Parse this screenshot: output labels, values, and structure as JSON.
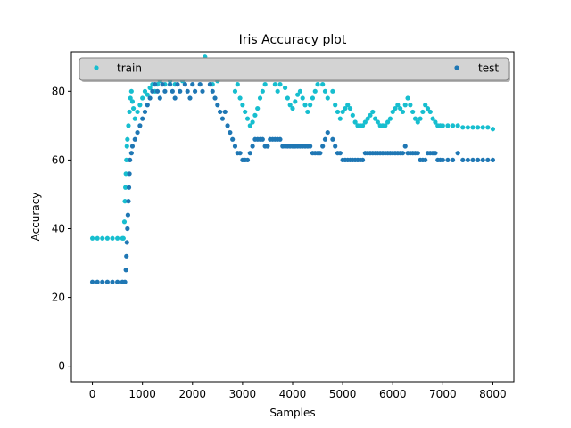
{
  "chart_data": {
    "type": "scatter",
    "title": "Iris Accuracy plot",
    "xlabel": "Samples",
    "ylabel": "Accuracy",
    "xlim": [
      -420,
      8420
    ],
    "ylim": [
      -4.5,
      91.5
    ],
    "xticks": [
      0,
      1000,
      2000,
      3000,
      4000,
      5000,
      6000,
      7000,
      8000
    ],
    "yticks": [
      0,
      20,
      40,
      60,
      80
    ],
    "grid": false,
    "legend_placement": "top",
    "series": [
      {
        "name": "train",
        "color": "#17becf",
        "points": [
          [
            0,
            37.2
          ],
          [
            100,
            37.2
          ],
          [
            200,
            37.2
          ],
          [
            300,
            37.2
          ],
          [
            400,
            37.2
          ],
          [
            500,
            37.2
          ],
          [
            600,
            37.2
          ],
          [
            620,
            37.2
          ],
          [
            640,
            42
          ],
          [
            650,
            48
          ],
          [
            660,
            52
          ],
          [
            670,
            56
          ],
          [
            680,
            60
          ],
          [
            690,
            64
          ],
          [
            700,
            66
          ],
          [
            720,
            70
          ],
          [
            740,
            74
          ],
          [
            760,
            78
          ],
          [
            780,
            80
          ],
          [
            800,
            77
          ],
          [
            820,
            75
          ],
          [
            850,
            72
          ],
          [
            900,
            74
          ],
          [
            950,
            76
          ],
          [
            1000,
            78
          ],
          [
            1050,
            80
          ],
          [
            1100,
            79
          ],
          [
            1150,
            81
          ],
          [
            1200,
            82
          ],
          [
            1250,
            80
          ],
          [
            1300,
            82
          ],
          [
            1350,
            83
          ],
          [
            1400,
            84
          ],
          [
            1450,
            82
          ],
          [
            1500,
            84
          ],
          [
            1550,
            83
          ],
          [
            1600,
            85
          ],
          [
            1650,
            82
          ],
          [
            1700,
            84
          ],
          [
            1750,
            86
          ],
          [
            1800,
            83
          ],
          [
            1850,
            84
          ],
          [
            1900,
            86
          ],
          [
            1950,
            84
          ],
          [
            2000,
            87
          ],
          [
            2050,
            85
          ],
          [
            2100,
            86
          ],
          [
            2150,
            84
          ],
          [
            2200,
            88
          ],
          [
            2250,
            90
          ],
          [
            2300,
            86
          ],
          [
            2350,
            84
          ],
          [
            2400,
            82
          ],
          [
            2450,
            84
          ],
          [
            2500,
            83
          ],
          [
            2550,
            84
          ],
          [
            2600,
            86
          ],
          [
            2650,
            84
          ],
          [
            2700,
            85
          ],
          [
            2750,
            86
          ],
          [
            2800,
            84
          ],
          [
            2850,
            80
          ],
          [
            2900,
            82
          ],
          [
            2950,
            78
          ],
          [
            3000,
            76
          ],
          [
            3050,
            74
          ],
          [
            3100,
            72
          ],
          [
            3150,
            70
          ],
          [
            3200,
            71
          ],
          [
            3250,
            73
          ],
          [
            3300,
            75
          ],
          [
            3350,
            78
          ],
          [
            3400,
            80
          ],
          [
            3450,
            82
          ],
          [
            3500,
            84
          ],
          [
            3550,
            85
          ],
          [
            3600,
            84
          ],
          [
            3650,
            82
          ],
          [
            3700,
            80
          ],
          [
            3750,
            82
          ],
          [
            3800,
            84
          ],
          [
            3850,
            81
          ],
          [
            3900,
            78
          ],
          [
            3950,
            76
          ],
          [
            4000,
            75
          ],
          [
            4050,
            77
          ],
          [
            4100,
            79
          ],
          [
            4150,
            80
          ],
          [
            4200,
            78
          ],
          [
            4250,
            76
          ],
          [
            4300,
            74
          ],
          [
            4350,
            76
          ],
          [
            4400,
            78
          ],
          [
            4450,
            80
          ],
          [
            4500,
            82
          ],
          [
            4550,
            84
          ],
          [
            4600,
            82
          ],
          [
            4650,
            80
          ],
          [
            4700,
            78
          ],
          [
            4750,
            89
          ],
          [
            4800,
            80
          ],
          [
            4850,
            76
          ],
          [
            4900,
            74
          ],
          [
            4950,
            72
          ],
          [
            5000,
            74
          ],
          [
            5050,
            75
          ],
          [
            5100,
            76
          ],
          [
            5150,
            75
          ],
          [
            5200,
            73
          ],
          [
            5250,
            71
          ],
          [
            5300,
            70
          ],
          [
            5350,
            70
          ],
          [
            5400,
            70
          ],
          [
            5450,
            71
          ],
          [
            5500,
            72
          ],
          [
            5550,
            73
          ],
          [
            5600,
            74
          ],
          [
            5650,
            72
          ],
          [
            5700,
            71
          ],
          [
            5750,
            70
          ],
          [
            5800,
            70
          ],
          [
            5850,
            70
          ],
          [
            5900,
            71
          ],
          [
            5950,
            72
          ],
          [
            6000,
            74
          ],
          [
            6050,
            75
          ],
          [
            6100,
            76
          ],
          [
            6150,
            75
          ],
          [
            6200,
            74
          ],
          [
            6250,
            76
          ],
          [
            6300,
            78
          ],
          [
            6350,
            76
          ],
          [
            6400,
            74
          ],
          [
            6450,
            72
          ],
          [
            6500,
            71
          ],
          [
            6550,
            72
          ],
          [
            6600,
            74
          ],
          [
            6650,
            76
          ],
          [
            6700,
            75
          ],
          [
            6750,
            74
          ],
          [
            6800,
            72
          ],
          [
            6850,
            71
          ],
          [
            6900,
            70
          ],
          [
            6950,
            70
          ],
          [
            7000,
            70
          ],
          [
            7100,
            70
          ],
          [
            7200,
            70
          ],
          [
            7300,
            70
          ],
          [
            7400,
            69.5
          ],
          [
            7500,
            69.5
          ],
          [
            7600,
            69.5
          ],
          [
            7700,
            69.5
          ],
          [
            7800,
            69.5
          ],
          [
            7900,
            69.5
          ],
          [
            8000,
            69
          ]
        ]
      },
      {
        "name": "test",
        "color": "#1f77b4",
        "points": [
          [
            0,
            24.5
          ],
          [
            100,
            24.5
          ],
          [
            200,
            24.5
          ],
          [
            300,
            24.5
          ],
          [
            400,
            24.5
          ],
          [
            500,
            24.5
          ],
          [
            600,
            24.5
          ],
          [
            650,
            24.5
          ],
          [
            670,
            28
          ],
          [
            680,
            32
          ],
          [
            690,
            36
          ],
          [
            700,
            40
          ],
          [
            710,
            44
          ],
          [
            720,
            48
          ],
          [
            730,
            52
          ],
          [
            740,
            56
          ],
          [
            750,
            60
          ],
          [
            780,
            62
          ],
          [
            800,
            64
          ],
          [
            850,
            66
          ],
          [
            900,
            68
          ],
          [
            950,
            70
          ],
          [
            1000,
            72
          ],
          [
            1050,
            74
          ],
          [
            1100,
            76
          ],
          [
            1150,
            78
          ],
          [
            1200,
            80
          ],
          [
            1250,
            82
          ],
          [
            1300,
            80
          ],
          [
            1350,
            78
          ],
          [
            1400,
            82
          ],
          [
            1450,
            80
          ],
          [
            1500,
            84
          ],
          [
            1550,
            82
          ],
          [
            1600,
            80
          ],
          [
            1650,
            78
          ],
          [
            1700,
            82
          ],
          [
            1750,
            80
          ],
          [
            1800,
            84
          ],
          [
            1850,
            82
          ],
          [
            1900,
            80
          ],
          [
            1950,
            78
          ],
          [
            2000,
            82
          ],
          [
            2050,
            80
          ],
          [
            2100,
            84
          ],
          [
            2150,
            82
          ],
          [
            2200,
            80
          ],
          [
            2250,
            84
          ],
          [
            2300,
            86
          ],
          [
            2350,
            82
          ],
          [
            2400,
            80
          ],
          [
            2450,
            78
          ],
          [
            2500,
            76
          ],
          [
            2550,
            74
          ],
          [
            2600,
            72
          ],
          [
            2650,
            74
          ],
          [
            2700,
            70
          ],
          [
            2750,
            68
          ],
          [
            2800,
            66
          ],
          [
            2850,
            64
          ],
          [
            2900,
            62
          ],
          [
            2950,
            62
          ],
          [
            3000,
            60
          ],
          [
            3050,
            60
          ],
          [
            3100,
            60
          ],
          [
            3150,
            62
          ],
          [
            3200,
            64
          ],
          [
            3250,
            66
          ],
          [
            3300,
            66
          ],
          [
            3350,
            66
          ],
          [
            3400,
            66
          ],
          [
            3450,
            64
          ],
          [
            3500,
            64
          ],
          [
            3550,
            66
          ],
          [
            3600,
            66
          ],
          [
            3650,
            66
          ],
          [
            3700,
            66
          ],
          [
            3750,
            66
          ],
          [
            3800,
            64
          ],
          [
            3850,
            64
          ],
          [
            3900,
            64
          ],
          [
            3950,
            64
          ],
          [
            4000,
            64
          ],
          [
            4050,
            64
          ],
          [
            4100,
            64
          ],
          [
            4150,
            64
          ],
          [
            4200,
            64
          ],
          [
            4250,
            64
          ],
          [
            4300,
            64
          ],
          [
            4350,
            64
          ],
          [
            4400,
            62
          ],
          [
            4450,
            62
          ],
          [
            4500,
            62
          ],
          [
            4550,
            62
          ],
          [
            4600,
            64
          ],
          [
            4650,
            66
          ],
          [
            4700,
            68
          ],
          [
            4750,
            86
          ],
          [
            4800,
            66
          ],
          [
            4850,
            64
          ],
          [
            4900,
            62
          ],
          [
            4950,
            62
          ],
          [
            5000,
            60
          ],
          [
            5050,
            60
          ],
          [
            5100,
            60
          ],
          [
            5150,
            60
          ],
          [
            5200,
            60
          ],
          [
            5250,
            60
          ],
          [
            5300,
            60
          ],
          [
            5350,
            60
          ],
          [
            5400,
            60
          ],
          [
            5450,
            62
          ],
          [
            5500,
            62
          ],
          [
            5550,
            62
          ],
          [
            5600,
            62
          ],
          [
            5650,
            62
          ],
          [
            5700,
            62
          ],
          [
            5750,
            62
          ],
          [
            5800,
            62
          ],
          [
            5850,
            62
          ],
          [
            5900,
            62
          ],
          [
            5950,
            62
          ],
          [
            6000,
            62
          ],
          [
            6050,
            62
          ],
          [
            6100,
            62
          ],
          [
            6150,
            62
          ],
          [
            6200,
            62
          ],
          [
            6250,
            64
          ],
          [
            6300,
            62
          ],
          [
            6350,
            62
          ],
          [
            6400,
            62
          ],
          [
            6450,
            62
          ],
          [
            6500,
            62
          ],
          [
            6550,
            60
          ],
          [
            6600,
            60
          ],
          [
            6650,
            60
          ],
          [
            6700,
            62
          ],
          [
            6750,
            62
          ],
          [
            6800,
            62
          ],
          [
            6850,
            62
          ],
          [
            6900,
            60
          ],
          [
            6950,
            60
          ],
          [
            7000,
            60
          ],
          [
            7100,
            60
          ],
          [
            7200,
            60
          ],
          [
            7300,
            62
          ],
          [
            7400,
            60
          ],
          [
            7500,
            60
          ],
          [
            7600,
            60
          ],
          [
            7700,
            60
          ],
          [
            7800,
            60
          ],
          [
            7900,
            60
          ],
          [
            8000,
            60
          ]
        ]
      }
    ]
  }
}
